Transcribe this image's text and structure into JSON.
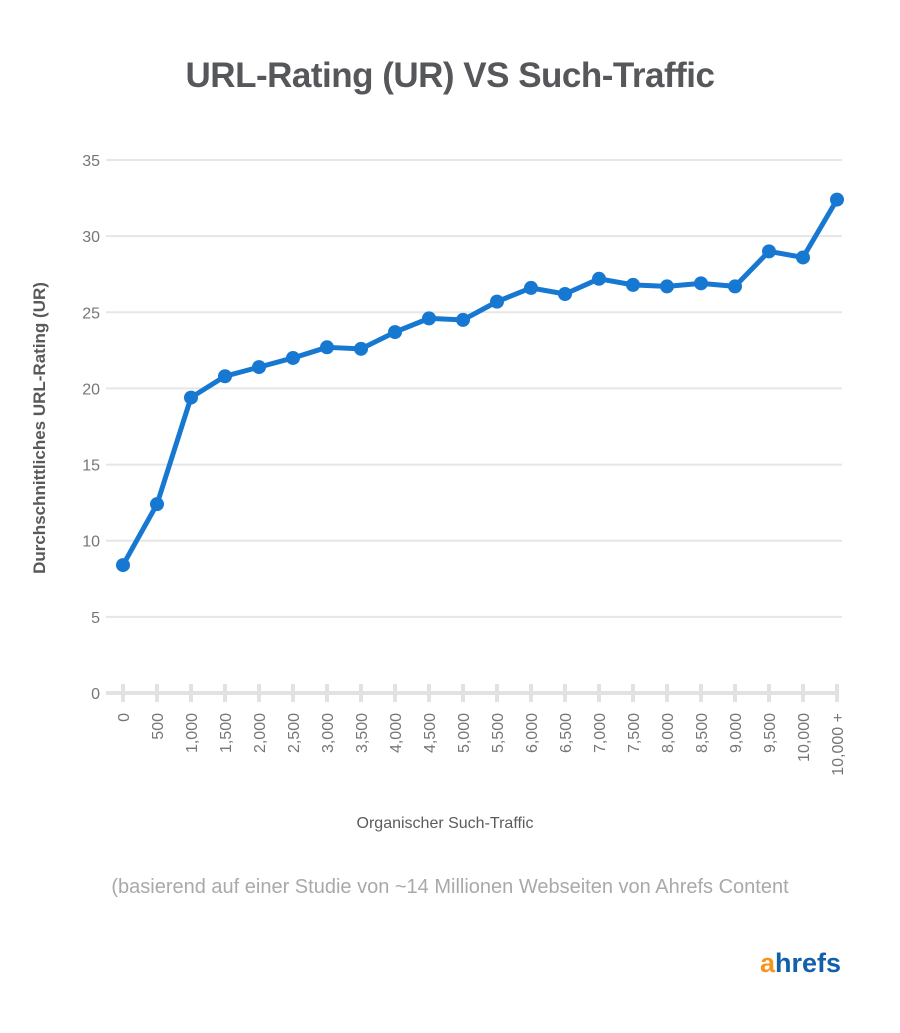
{
  "chart_data": {
    "type": "line",
    "title": "URL-Rating (UR) VS Such-Traffic",
    "xlabel": "Organischer Such-Traffic",
    "ylabel": "Durchschnittliches URL-Rating (UR)",
    "categories": [
      "0",
      "500",
      "1,000",
      "1,500",
      "2,000",
      "2,500",
      "3,000",
      "3,500",
      "4,000",
      "4,500",
      "5,000",
      "5,500",
      "6,000",
      "6,500",
      "7,000",
      "7,500",
      "8,000",
      "8,500",
      "9,000",
      "9,500",
      "10,000",
      "10,000 +"
    ],
    "series": [
      {
        "name": "Durchschnittliches URL-Rating (UR)",
        "values": [
          8.4,
          12.4,
          19.4,
          20.8,
          21.4,
          22.0,
          22.7,
          22.6,
          23.7,
          24.6,
          24.5,
          25.7,
          26.6,
          26.2,
          27.2,
          26.8,
          26.7,
          26.9,
          26.7,
          29.0,
          28.6,
          32.4
        ]
      }
    ],
    "ylim": [
      0,
      35
    ],
    "yticks": [
      0,
      5,
      10,
      15,
      20,
      25,
      30,
      35
    ],
    "grid": true,
    "legend_position": "none",
    "marker": "circle"
  },
  "footer": {
    "caption": "(basierend auf einer Studie von ~14 Millionen Webseiten von Ahrefs Content",
    "logo_text_orange": "a",
    "logo_text_blue": "hrefs"
  },
  "colors": {
    "line": "#1778d2",
    "title_text": "#56575a",
    "axis_text": "#767676",
    "caption_text": "#a9a9a9",
    "gridline": "#e6e6e6",
    "axis_line": "#e2e2e2",
    "logo_orange": "#f7941e",
    "logo_blue": "#1160ab"
  }
}
